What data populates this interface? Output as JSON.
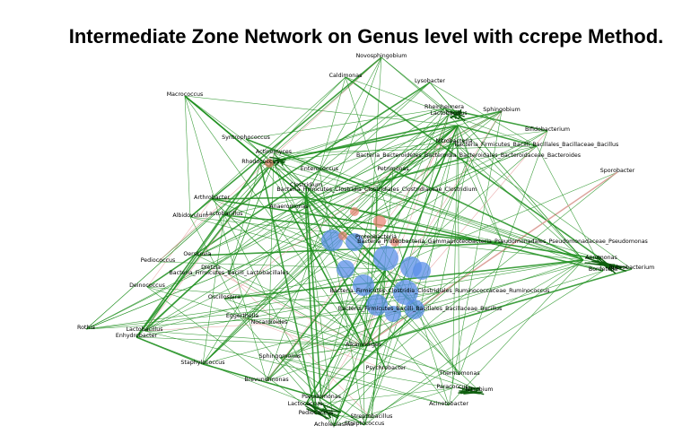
{
  "title": "Intermediate Zone Network on Genus level with ccrepe Method.",
  "colors": {
    "positive_edge": "#1f8f1f",
    "negative_edge": "#e8a0a0",
    "node_blue": "#5b8fe8",
    "node_red": "#e88070"
  },
  "nodes": [
    "Novosphingobium",
    "Caldimonas",
    "Lysobacter",
    "Macrococcus",
    "Rheinheimera",
    "Sphingobium",
    "Lactobacillus",
    "Bifidobacterium",
    "Syntrophococcus",
    "Nitrobacteria",
    "Bacteria_Firmicutes_Bacilli_Bacillales_Bacillaceae_Bacillus",
    "Bacteria_Bacteroidetes_Bacteroidia_Bacteroidales_Bacteroidaceae_Bacteroides",
    "Sporobacter",
    "Enterococcus",
    "Petrimonas",
    "Bacteria_Firmicutes_Clostridia_Clostridiales_Clostridiaceae_Clostridium",
    "Arthrobacter",
    "Clostridium",
    "Albidovulum",
    "Lactobacillus",
    "Anaeromonas",
    "Proteobacteria",
    "Bacteria_Proteobacteria_Gammaproteobacteria_Pseudomonadales_Pseudomonadaceae_Pseudomonas",
    "Oerskovia",
    "Pediococcus",
    "Dietzia",
    "Bacteria_Firmicutes_Bacilli_Lactobacillales",
    "Aeromonas",
    "Bordetella",
    "Rubrobacterium",
    "Deinococcus",
    "Bacteria_Firmicutes_Clostridia_Clostridiales_Ruminococcaceae_Ruminococcus",
    "Oscillospira",
    "Eggerthella",
    "Nocardioides",
    "Bacteria_Firmicutes_Bacilli_Bacillales_Bacillaceae_Bacillus",
    "Rothia",
    "Lactobacillus",
    "Enhydrobacter",
    "Acinetobacter",
    "Alkanindiges",
    "Staphylococcus",
    "Sphingomonas",
    "Psychrobacter",
    "Thermomonas",
    "Paracoccus",
    "Brevundimonas",
    "Nitrobium",
    "Pseudomonas",
    "Lactococcus",
    "Pediococcus",
    "Streptococcus",
    "Acholeplasma",
    "Streptobacillus",
    "Rhodococcus",
    "Actinomyces"
  ]
}
